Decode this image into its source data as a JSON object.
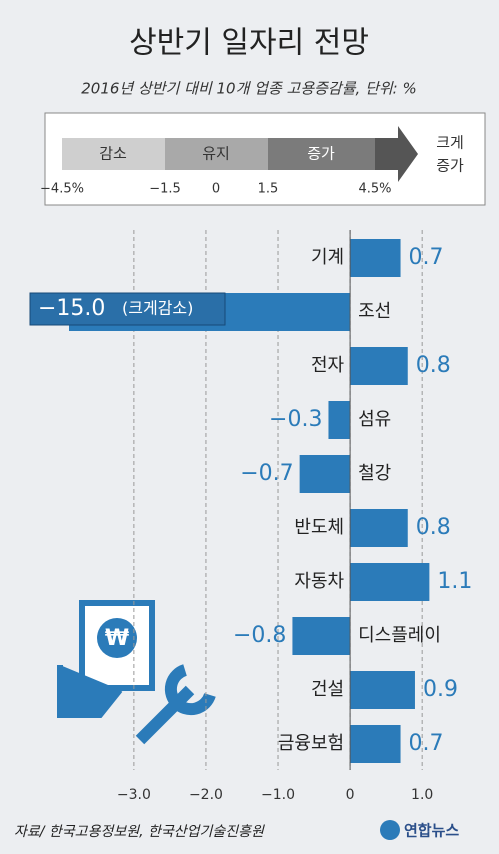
{
  "chart_data": {
    "type": "barh",
    "title": "상반기 일자리 전망",
    "subtitle": "2016년 상반기 대비 10개 업종 고용증감률, 단위: %",
    "legend_scale": {
      "bands": [
        "감소",
        "유지",
        "증가"
      ],
      "arrow_label": [
        "크게",
        "증가"
      ],
      "ticks": [
        "−4.5%",
        "−1.5",
        "0",
        "1.5",
        "4.5%"
      ]
    },
    "categories": [
      "기계",
      "조선",
      "전자",
      "섬유",
      "철강",
      "반도체",
      "자동차",
      "디스플레이",
      "건설",
      "금융보험"
    ],
    "values": [
      0.7,
      -15.0,
      0.8,
      -0.3,
      -0.7,
      0.8,
      1.1,
      -0.8,
      0.9,
      0.7
    ],
    "value_labels": [
      "0.7",
      "−15.0",
      "0.8",
      "−0.3",
      "−0.7",
      "0.8",
      "1.1",
      "−0.8",
      "0.9",
      "0.7"
    ],
    "annotation": "(크게감소)",
    "color": "#2b7bb9",
    "xlim": [
      -3.9,
      1.4
    ],
    "xticks": [
      {
        "value": -3,
        "label": "−3.0"
      },
      {
        "value": -2,
        "label": "−2.0"
      },
      {
        "value": -1,
        "label": "−1.0"
      },
      0,
      {
        "value": 1,
        "label": "1.0"
      }
    ],
    "grid": true,
    "source": "자료/ 한국고용정보원, 한국산업기술진흥원",
    "logo": "연합뉴스"
  }
}
